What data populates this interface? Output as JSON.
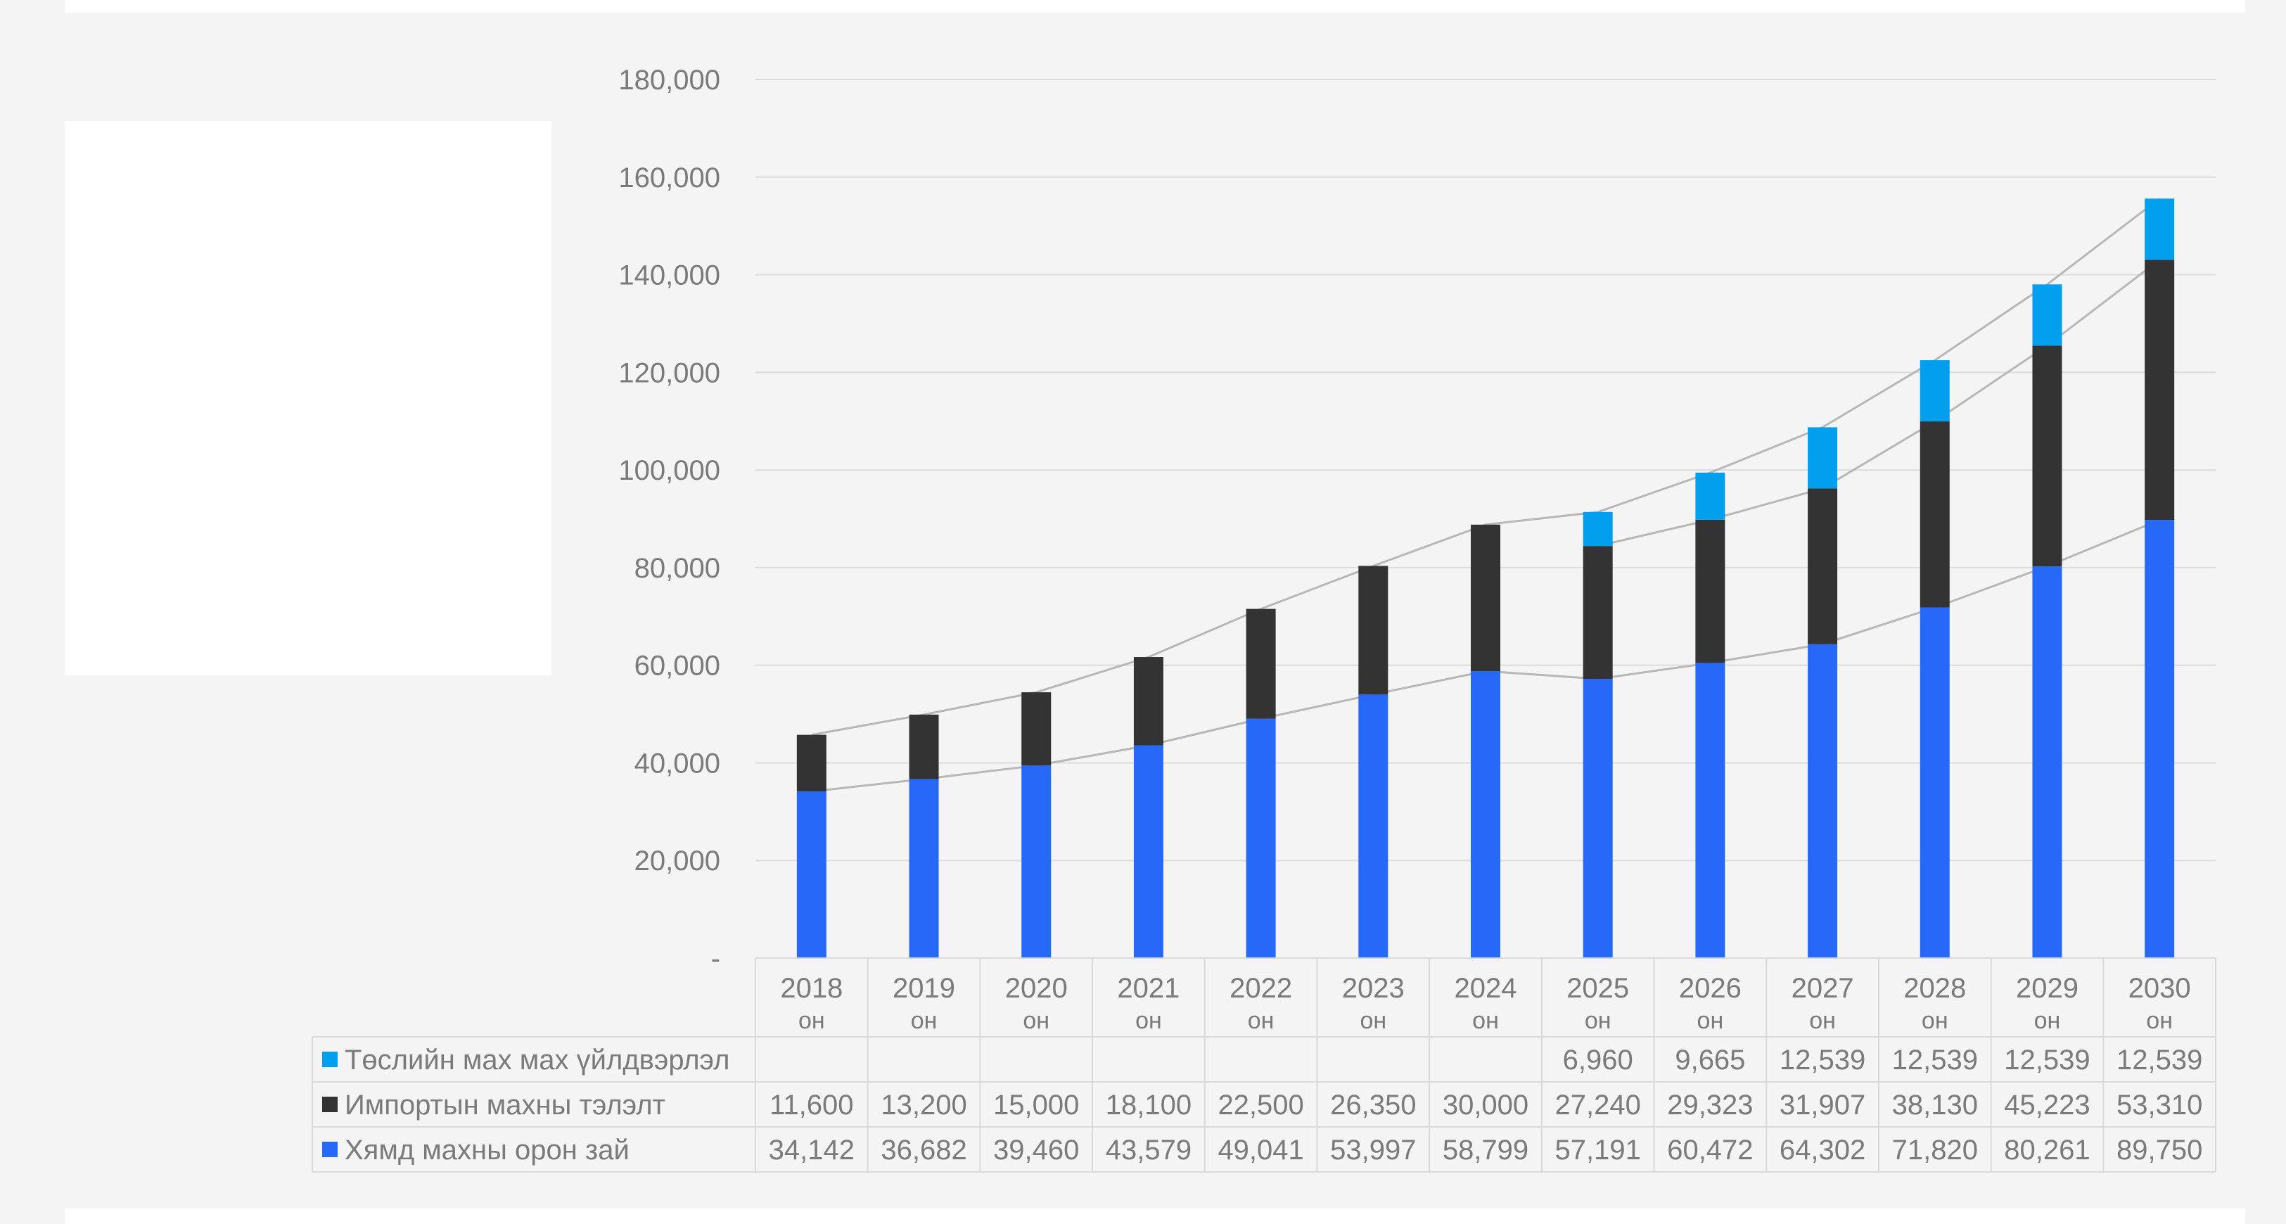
{
  "colors": {
    "project": "#039fef",
    "import": "#333333",
    "cheap": "#2769f6",
    "grid": "#dcdcdc",
    "connector": "#b7b7b7",
    "text": "#7a7a7a"
  },
  "chart_data": {
    "type": "bar",
    "stacked": true,
    "categories": [
      "2018",
      "2019",
      "2020",
      "2021",
      "2022",
      "2023",
      "2024",
      "2025",
      "2026",
      "2027",
      "2028",
      "2029",
      "2030"
    ],
    "category_suffix": "он",
    "ylim": [
      0,
      180000
    ],
    "yticks": [
      {
        "value": 0,
        "label": "-"
      },
      {
        "value": 20000,
        "label": "20,000"
      },
      {
        "value": 40000,
        "label": "40,000"
      },
      {
        "value": 60000,
        "label": "60,000"
      },
      {
        "value": 80000,
        "label": "80,000"
      },
      {
        "value": 100000,
        "label": "100,000"
      },
      {
        "value": 120000,
        "label": "120,000"
      },
      {
        "value": 140000,
        "label": "140,000"
      },
      {
        "value": 160000,
        "label": "160,000"
      },
      {
        "value": 180000,
        "label": "180,000"
      }
    ],
    "grid": true,
    "legend": "data-table",
    "series": [
      {
        "name": "Хямд махны орон зай",
        "color": "#2769f6",
        "values": [
          34142,
          36682,
          39460,
          43579,
          49041,
          53997,
          58799,
          57191,
          60472,
          64302,
          71820,
          80261,
          89750
        ],
        "labels": [
          "34,142",
          "36,682",
          "39,460",
          "43,579",
          "49,041",
          "53,997",
          "58,799",
          "57,191",
          "60,472",
          "64,302",
          "71,820",
          "80,261",
          "89,750"
        ]
      },
      {
        "name": "Импортын махны тэлэлт",
        "color": "#333333",
        "values": [
          11600,
          13200,
          15000,
          18100,
          22500,
          26350,
          30000,
          27240,
          29323,
          31907,
          38130,
          45223,
          53310
        ],
        "labels": [
          "11,600",
          "13,200",
          "15,000",
          "18,100",
          "22,500",
          "26,350",
          "30,000",
          "27,240",
          "29,323",
          "31,907",
          "38,130",
          "45,223",
          "53,310"
        ]
      },
      {
        "name": "Төслийн мах мах үйлдвэрлэл",
        "color": "#039fef",
        "values": [
          null,
          null,
          null,
          null,
          null,
          null,
          null,
          6960,
          9665,
          12539,
          12539,
          12539,
          12539
        ],
        "labels": [
          "",
          "",
          "",
          "",
          "",
          "",
          "",
          "6,960",
          "9,665",
          "12,539",
          "12,539",
          "12,539",
          "12,539"
        ]
      }
    ],
    "table_row_order": [
      2,
      1,
      0
    ]
  }
}
